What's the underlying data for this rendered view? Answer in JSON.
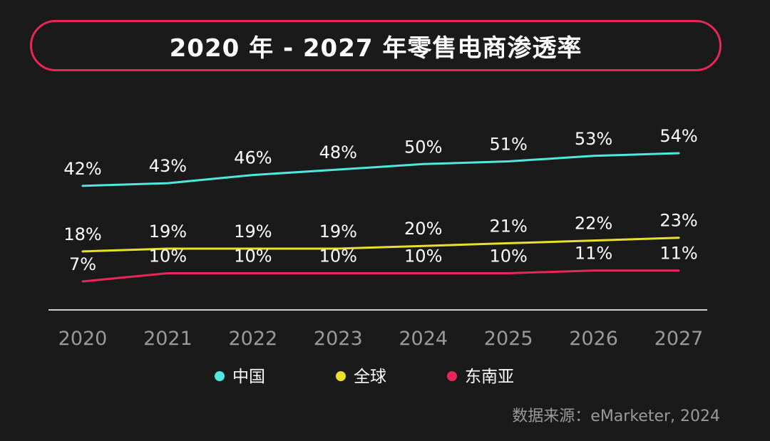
{
  "title": "2020 年 - 2027 年零售电商渗透率",
  "source": "数据来源：eMarketer, 2024",
  "chart_data": {
    "type": "line",
    "title": "2020 年 - 2027 年零售电商渗透率",
    "xlabel": "",
    "ylabel": "",
    "categories": [
      "2020",
      "2021",
      "2022",
      "2023",
      "2024",
      "2025",
      "2026",
      "2027"
    ],
    "series": [
      {
        "name": "中国",
        "color": "#4fe8dc",
        "values": [
          42,
          43,
          46,
          48,
          50,
          51,
          53,
          54
        ]
      },
      {
        "name": "全球",
        "color": "#e8e02a",
        "values": [
          18,
          19,
          19,
          19,
          20,
          21,
          22,
          23
        ]
      },
      {
        "name": "东南亚",
        "color": "#e8265a",
        "values": [
          7,
          10,
          10,
          10,
          10,
          10,
          11,
          11
        ]
      }
    ],
    "value_suffix": "%",
    "ylim": [
      0,
      60
    ],
    "grid": false,
    "legend": "bottom-center"
  }
}
